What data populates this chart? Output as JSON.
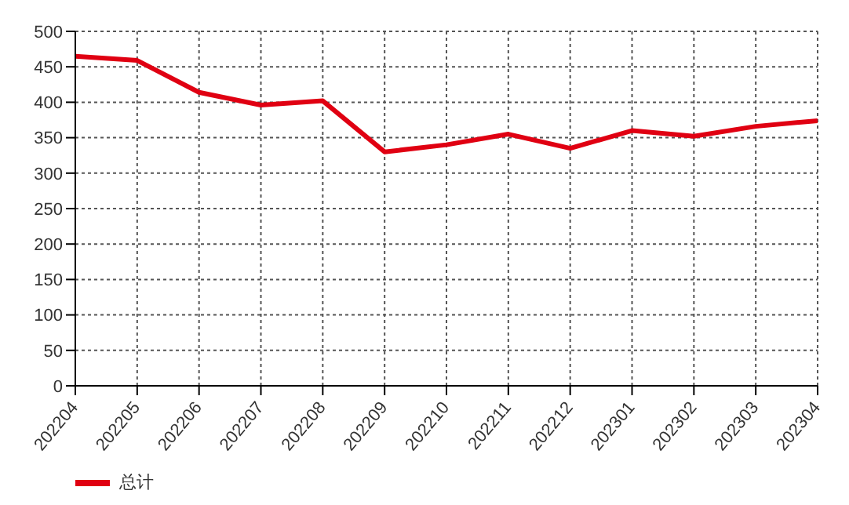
{
  "chart_data": {
    "type": "line",
    "categories": [
      "202204",
      "202205",
      "202206",
      "202207",
      "202208",
      "202209",
      "202210",
      "202211",
      "202212",
      "202301",
      "202302",
      "202303",
      "202304"
    ],
    "series": [
      {
        "name": "总计",
        "color": "#e00012",
        "values": [
          465,
          459,
          414,
          396,
          402,
          330,
          340,
          355,
          335,
          360,
          352,
          366,
          374
        ]
      }
    ],
    "ylim": [
      0,
      500
    ],
    "yticks": [
      0,
      50,
      100,
      150,
      200,
      250,
      300,
      350,
      400,
      450,
      500
    ],
    "grid": true,
    "legend": "bottom left",
    "marker": "none",
    "line_style": "solid"
  }
}
